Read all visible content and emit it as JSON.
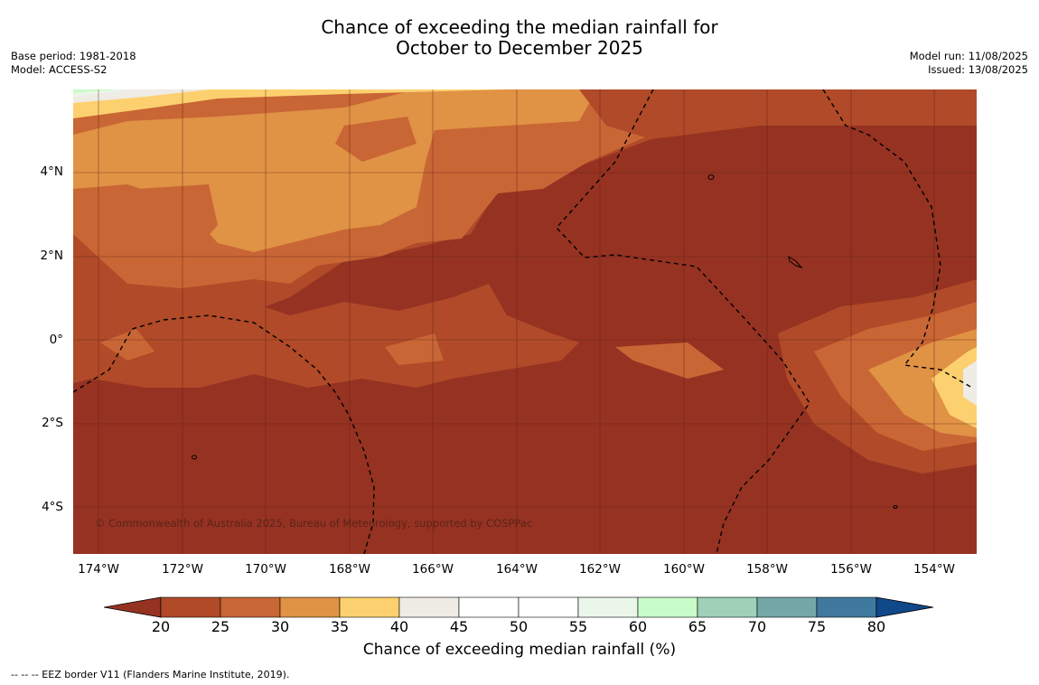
{
  "title_line1": "Chance of exceeding the median rainfall for",
  "title_line2": "October to December 2025",
  "base_period": "Base period: 1981-2018",
  "model": "Model: ACCESS-S2",
  "model_run": "Model run: 11/08/2025",
  "issued": "Issued: 13/08/2025",
  "copyright": "© Commonwealth of Australia 2025, Bureau of Meteorology, supported by COSPPac",
  "lat_labels": [
    "4°N",
    "2°N",
    "0°",
    "2°S",
    "4°S"
  ],
  "lon_labels": [
    "174°W",
    "172°W",
    "170°W",
    "168°W",
    "166°W",
    "164°W",
    "162°W",
    "160°W",
    "158°W",
    "156°W",
    "154°W"
  ],
  "colorbar": {
    "ticks": [
      "20",
      "25",
      "30",
      "35",
      "40",
      "45",
      "50",
      "55",
      "60",
      "65",
      "70",
      "75",
      "80"
    ],
    "colors": [
      "#963222",
      "#b04a28",
      "#c96635",
      "#e09245",
      "#fdd06f",
      "#efebe5",
      "#ffffff",
      "#ffffff",
      "#ebf6ea",
      "#c8fcc8",
      "#9ed1b8",
      "#74a7a8",
      "#3f7a9e",
      "#10498a"
    ],
    "label": "Chance of exceeding median rainfall (%)"
  },
  "eez_note": "--  --  -- EEZ border V11 (Flanders Marine Institute, 2019)."
}
